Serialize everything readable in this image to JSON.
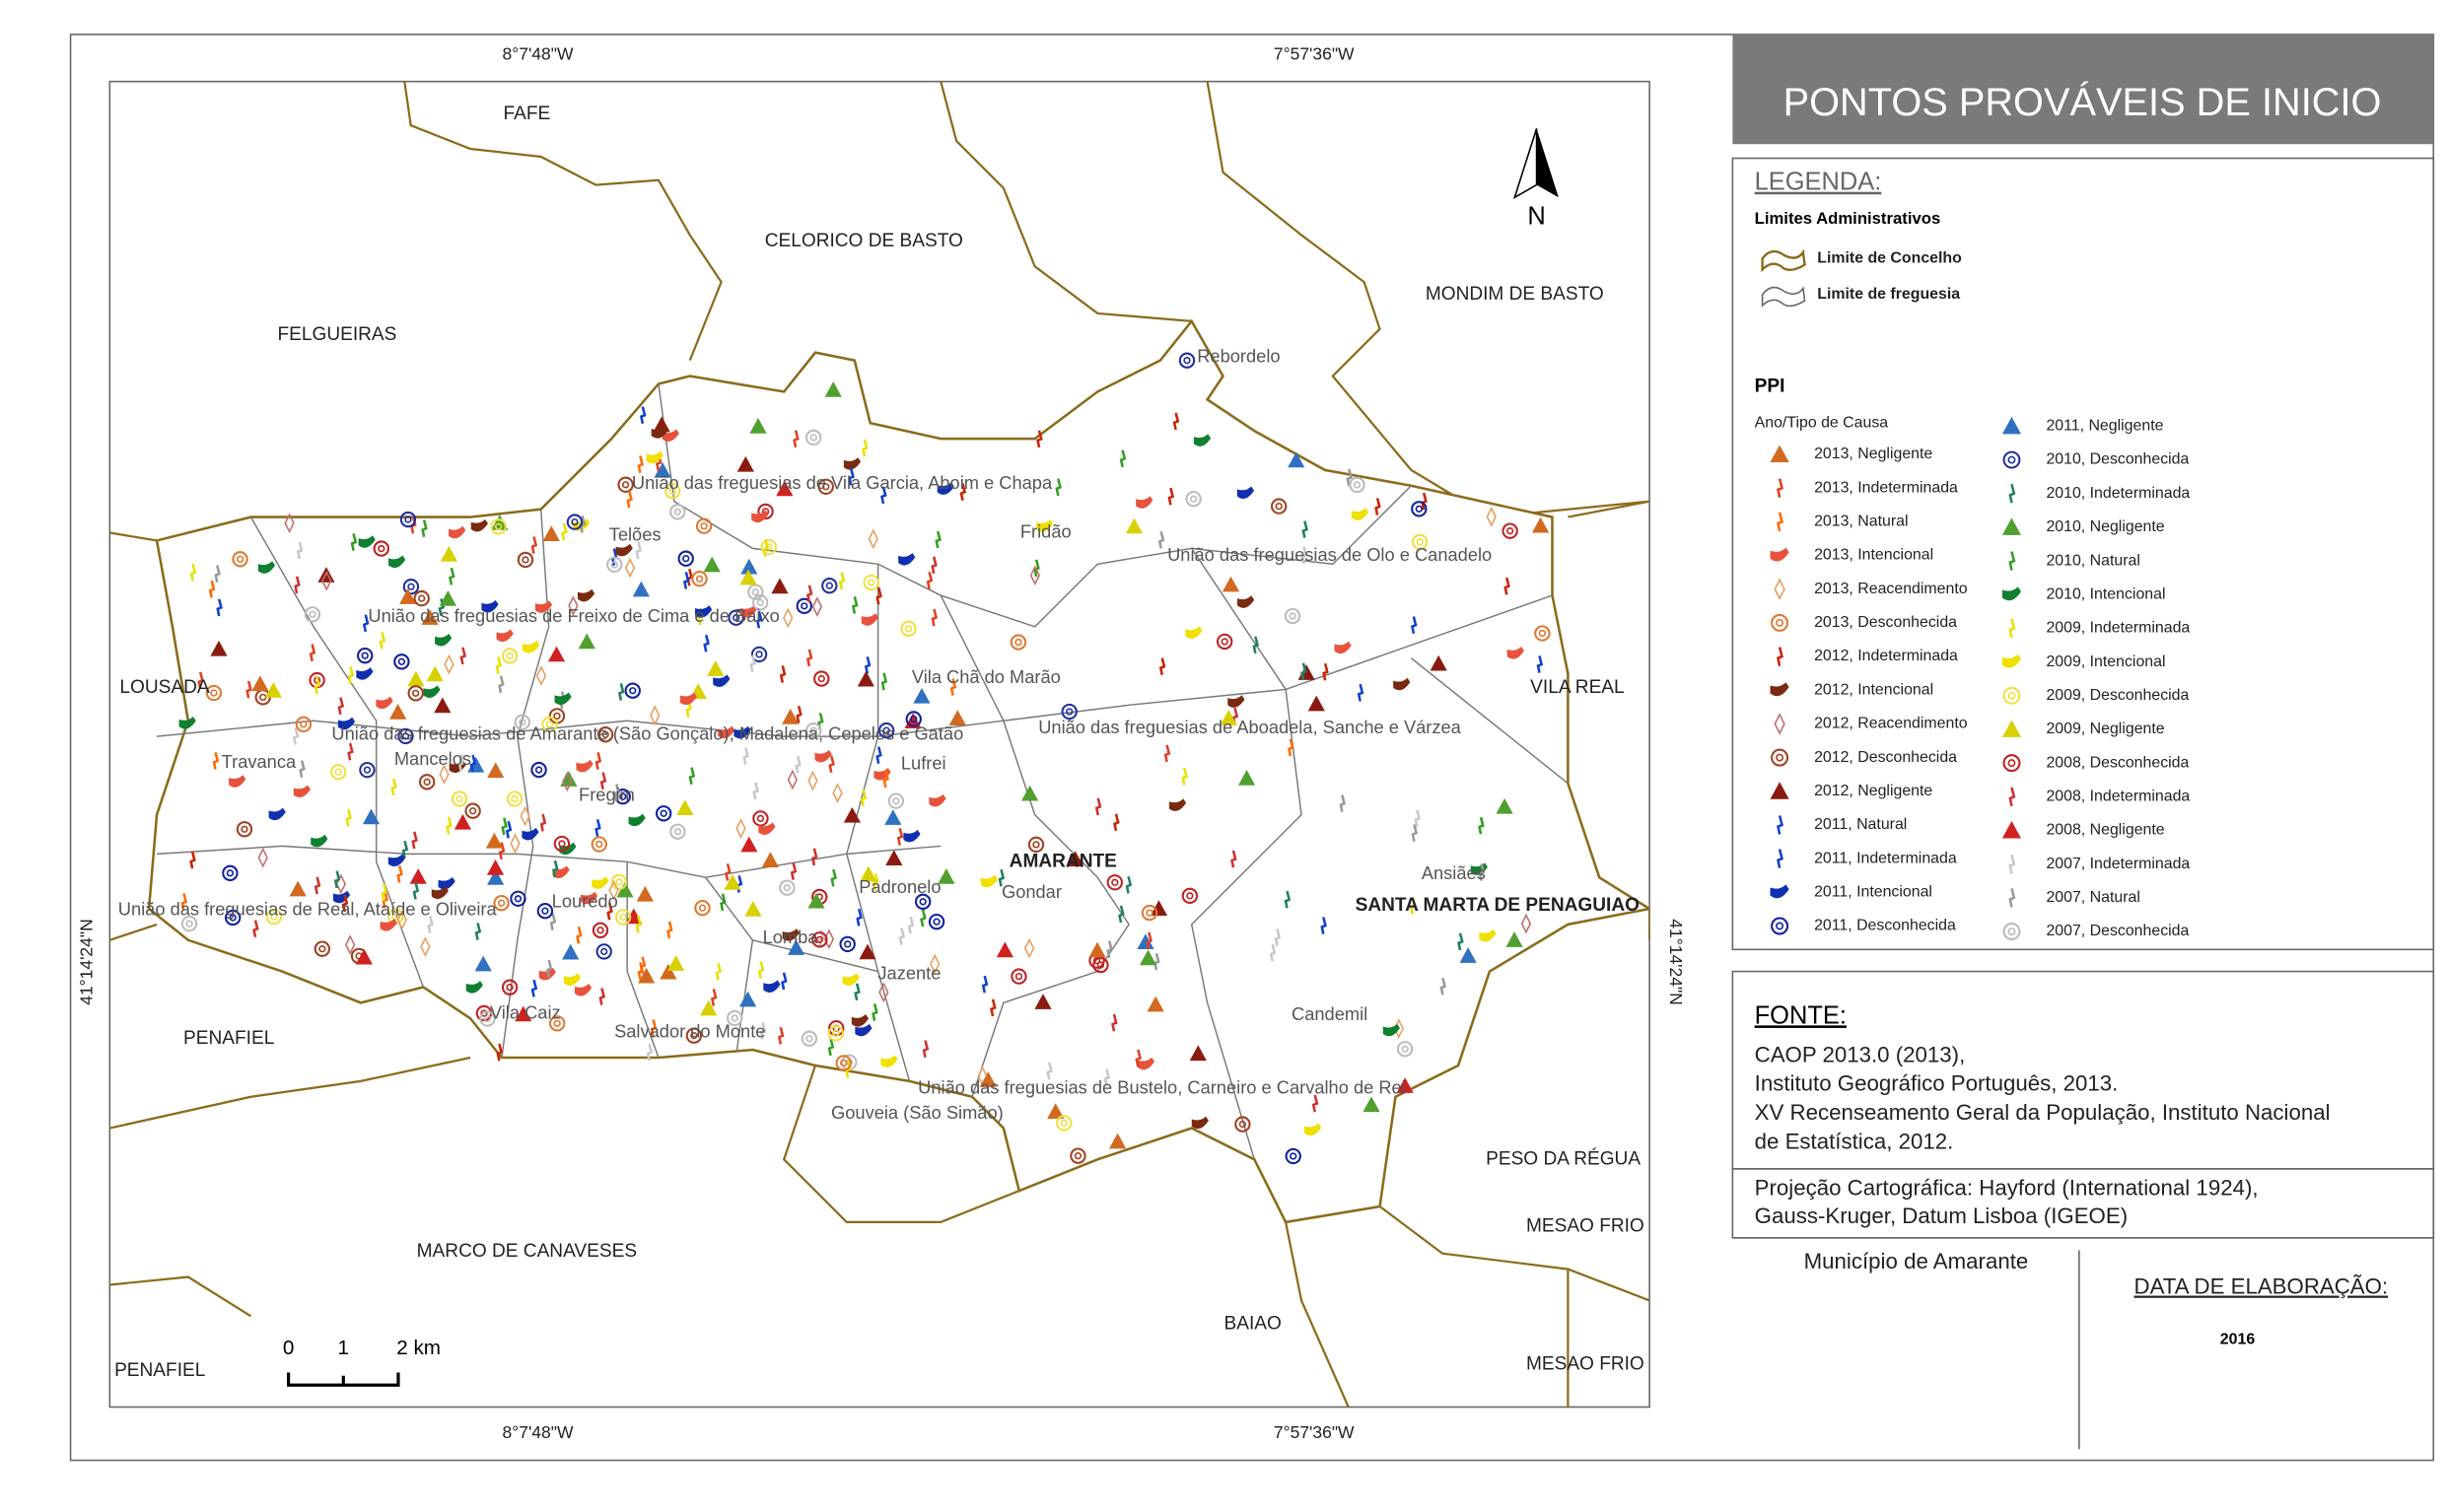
{
  "title": "PONTOS PROVÁVEIS DE INICIO",
  "coordinates": {
    "top": [
      "8°7'48\"W",
      "7°57'36\"W"
    ],
    "bottom": [
      "8°7'48\"W",
      "7°57'36\"W"
    ],
    "left": "41°14'24\"N",
    "right": "41°14'24\"N"
  },
  "north": "N",
  "scale_bar": [
    "0",
    "1",
    "2 km"
  ],
  "map_labels": {
    "concelhos": [
      "FAFE",
      "CELORICO DE BASTO",
      "FELGUEIRAS",
      "MONDIM DE BASTO",
      "LOUSADA",
      "VILA REAL",
      "PENAFIEL",
      "PESO DA RÉGUA",
      "MESAO FRIO",
      "MARCO DE CANAVESES",
      "BAIAO",
      "PENAFIEL",
      "MESAO FRIO",
      "AMARANTE",
      "SANTA MARTA DE PENAGUIAO"
    ],
    "freguesias": [
      "Rebordelo",
      "União das freguesias de Vila Garcia, Aboim e Chapa",
      "Fridão",
      "União das freguesias de Olo e Canadelo",
      "Telões",
      "União das freguesias de Freixo de Cima e de Baixo",
      "Vila Chã do Marão",
      "União das freguesias de Amarante (São Gonçalo), Madalena, Cepelos e Gatão",
      "União das freguesias de Aboadela, Sanche e Várzea",
      "Travanca",
      "Mancelos",
      "Lufrei",
      "Fregim",
      "Ansiães",
      "Louredo",
      "Padronelo",
      "Gondar",
      "União das freguesias de Real, Ataíde e Oliveira",
      "Lomba",
      "Jazente",
      "Vila Caiz",
      "Candemil",
      "Salvador do Monte",
      "União das freguesias de Bustelo, Carneiro e Carvalho de Rei",
      "Gouveia (São Simão)"
    ]
  },
  "legend": {
    "heading": "LEGENDA:",
    "admin_heading": "Limites Administrativos",
    "admin_items": [
      "Limite de Concelho",
      "Limite de freguesia"
    ],
    "ppi_heading": "PPI",
    "ppi_subheading": "Ano/Tipo de Causa",
    "ppi_items": [
      "2013, Negligente",
      "2013, Indeterminada",
      "2013, Natural",
      "2013, Intencional",
      "2013, Reacendimento",
      "2013, Desconhecida",
      "2012, Indeterminada",
      "2012, Intencional",
      "2012, Reacendimento",
      "2012, Desconhecida",
      "2012, Negligente",
      "2011, Natural",
      "2011, Indeterminada",
      "2011, Intencional",
      "2011, Desconhecida",
      "2011, Negligente",
      "2010, Desconhecida",
      "2010, Indeterminada",
      "2010, Negligente",
      "2010, Natural",
      "2010, Intencional",
      "2009, Indeterminada",
      "2009, Intencional",
      "2009, Desconhecida",
      "2009, Negligente",
      "2008, Desconhecida",
      "2008, Indeterminada",
      "2008, Negligente",
      "2007, Indeterminada",
      "2007, Natural",
      "2007, Desconhecida"
    ]
  },
  "source": {
    "heading": "FONTE:",
    "lines": [
      "CAOP 2013.0 (2013),",
      "Instituto Geográfico Português, 2013.",
      "XV Recenseamento Geral da População, Instituto Nacional",
      "de Estatística, 2012."
    ]
  },
  "projection": [
    "Projeção Cartográfica: Hayford (International 1924),",
    "Gauss-Kruger, Datum Lisboa (IGEOE)"
  ],
  "municipality": "Município de Amarante",
  "date_label": "DATA DE ELABORAÇÃO:",
  "date": "2016"
}
